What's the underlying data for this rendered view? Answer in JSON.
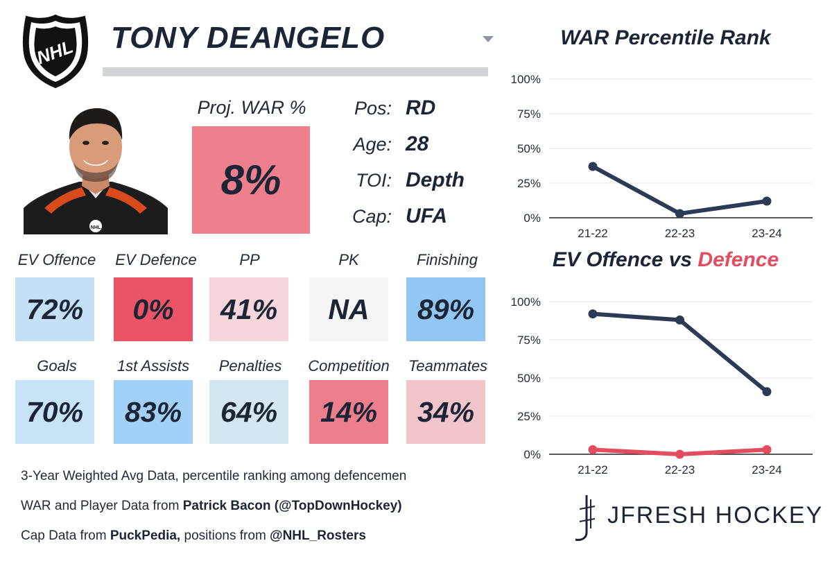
{
  "header": {
    "player_name": "TONY DEANGELO"
  },
  "projection": {
    "label": "Proj. WAR %",
    "value": "8%",
    "color": "#ee7f8d"
  },
  "info": [
    {
      "key": "Pos:",
      "value": "RD"
    },
    {
      "key": "Age:",
      "value": "28"
    },
    {
      "key": "TOI:",
      "value": "Depth"
    },
    {
      "key": "Cap:",
      "value": "UFA"
    }
  ],
  "stats_row1": [
    {
      "label": "EV Offence",
      "value": "72%",
      "color": "#c5e0f5"
    },
    {
      "label": "EV Defence",
      "value": "0%",
      "color": "#ea5466"
    },
    {
      "label": "PP",
      "value": "41%",
      "color": "#f5d7db"
    },
    {
      "label": "PK",
      "value": "NA",
      "color": "#f5f5f5"
    },
    {
      "label": "Finishing",
      "value": "89%",
      "color": "#92c7f3"
    }
  ],
  "stats_row2": [
    {
      "label": "Goals",
      "value": "70%",
      "color": "#c8e2f6"
    },
    {
      "label": "1st Assists",
      "value": "83%",
      "color": "#a3d0f6"
    },
    {
      "label": "Penalties",
      "value": "64%",
      "color": "#d2e6f4"
    },
    {
      "label": "Competition",
      "value": "14%",
      "color": "#ed7f8c"
    },
    {
      "label": "Teammates",
      "value": "34%",
      "color": "#f2c5ca"
    }
  ],
  "footer": {
    "line1": "3-Year Weighted Avg Data, percentile ranking among defencemen",
    "line2_prefix": "WAR and Player Data from ",
    "line2_bold": "Patrick Bacon (@TopDownHockey)",
    "line3_prefix": "Cap Data from ",
    "line3_bold1": "PuckPedia,",
    "line3_mid": " positions from ",
    "line3_bold2": "@NHL_Rosters"
  },
  "brand": {
    "text": "JFRESH HOCKEY"
  },
  "chart_data": [
    {
      "type": "line",
      "title": "WAR Percentile Rank",
      "categories": [
        "21-22",
        "22-23",
        "23-24"
      ],
      "y_ticks": [
        "0%",
        "25%",
        "50%",
        "75%",
        "100%"
      ],
      "ylim": [
        0,
        100
      ],
      "grid": true,
      "series": [
        {
          "values": [
            37,
            3,
            12
          ],
          "color": "#2b3a55"
        }
      ]
    },
    {
      "type": "line",
      "title_part1": "EV Offence",
      "title_part2": " vs ",
      "title_part3": "Defence",
      "categories": [
        "21-22",
        "22-23",
        "23-24"
      ],
      "y_ticks": [
        "0%",
        "25%",
        "50%",
        "75%",
        "100%"
      ],
      "ylim": [
        0,
        100
      ],
      "grid": true,
      "series": [
        {
          "values": [
            92,
            88,
            41
          ],
          "color": "#2b3a55"
        },
        {
          "values": [
            3,
            0,
            3
          ],
          "color": "#e34d5f"
        }
      ]
    }
  ]
}
